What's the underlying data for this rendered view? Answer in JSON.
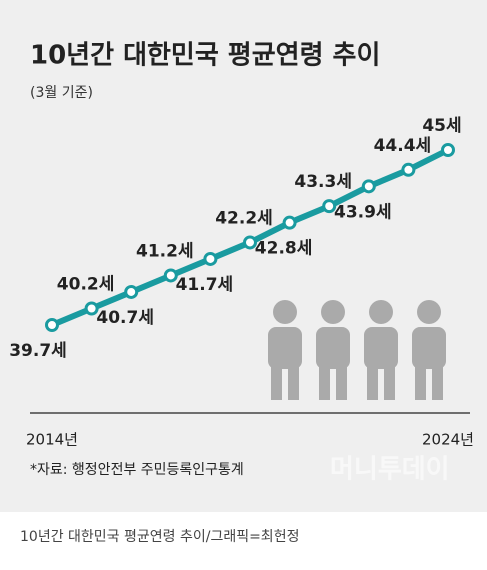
{
  "chart_data": {
    "type": "line",
    "title": "10년간 대한민국 평균연령 추이",
    "subtitle": "(3월 기준)",
    "categories": [
      "2014년",
      null,
      null,
      null,
      null,
      null,
      null,
      null,
      null,
      null,
      "2024년"
    ],
    "series": [
      {
        "name": "평균연령",
        "color": "#1a9ba0",
        "values": [
          39.7,
          40.2,
          40.7,
          41.2,
          41.7,
          42.2,
          42.8,
          43.3,
          43.9,
          44.4,
          45
        ],
        "value_labels": [
          "39.7세",
          "40.2세",
          "40.7세",
          "41.2세",
          "41.7세",
          "42.2세",
          "42.8세",
          "43.3세",
          "43.9세",
          "44.4세",
          "45세"
        ]
      }
    ],
    "source": "*자료: 행정안전부 주민등록인구통계",
    "watermark": "머니투데이",
    "caption": "10년간 대한민국 평균연령 추이/그래픽=최헌정"
  }
}
